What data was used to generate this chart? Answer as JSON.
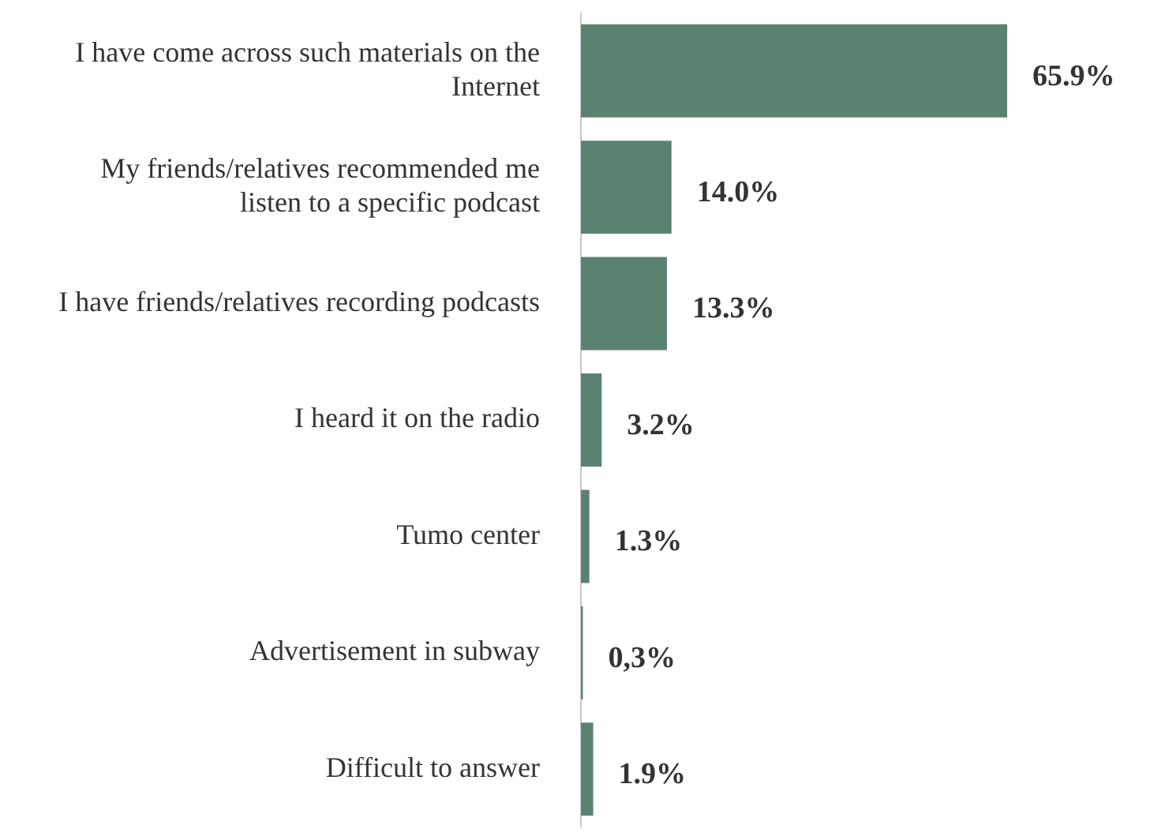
{
  "chart_data": {
    "type": "bar",
    "orientation": "horizontal",
    "categories": [
      "I have come across such materials on the Internet",
      "My friends/relatives recommended me listen to a specific podcast",
      "I have friends/relatives recording podcasts",
      "I heard it on the radio",
      "Tumo center",
      "Advertisement in subway",
      "Difficult to answer"
    ],
    "values": [
      65.9,
      14.0,
      13.3,
      3.2,
      1.3,
      0.3,
      1.9
    ],
    "value_labels": [
      "65.9%",
      "14.0%",
      "13.3%",
      "3.2%",
      "1.3%",
      "0,3%",
      "1.9%"
    ],
    "color": "#5b8271",
    "grid": false,
    "legend": false
  }
}
